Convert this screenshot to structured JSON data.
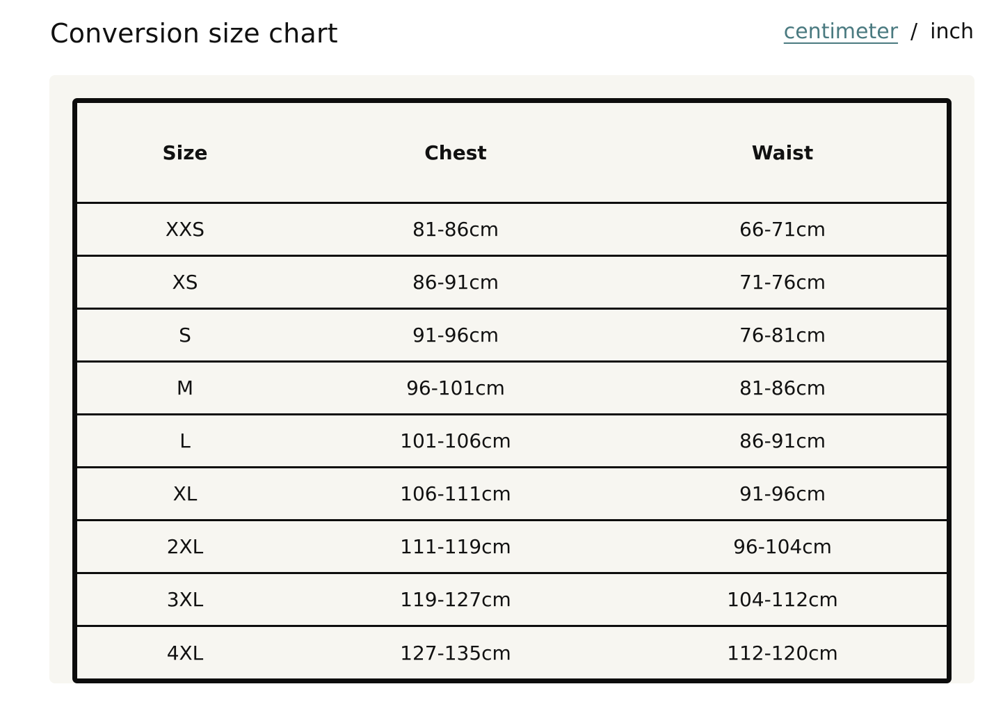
{
  "title": "Conversion size chart",
  "units": {
    "centimeter": "centimeter",
    "separator": "/",
    "inch": "inch",
    "active": "centimeter",
    "active_color": "#4a7a80"
  },
  "table": {
    "headers": [
      "Size",
      "Chest",
      "Waist"
    ],
    "rows": [
      [
        "XXS",
        "81-86cm",
        "66-71cm"
      ],
      [
        "XS",
        "86-91cm",
        "71-76cm"
      ],
      [
        "S",
        "91-96cm",
        "76-81cm"
      ],
      [
        "M",
        "96-101cm",
        "81-86cm"
      ],
      [
        "L",
        "101-106cm",
        "86-91cm"
      ],
      [
        "XL",
        "106-111cm",
        "91-96cm"
      ],
      [
        "2XL",
        "111-119cm",
        "96-104cm"
      ],
      [
        "3XL",
        "119-127cm",
        "104-112cm"
      ],
      [
        "4XL",
        "127-135cm",
        "112-120cm"
      ]
    ]
  }
}
